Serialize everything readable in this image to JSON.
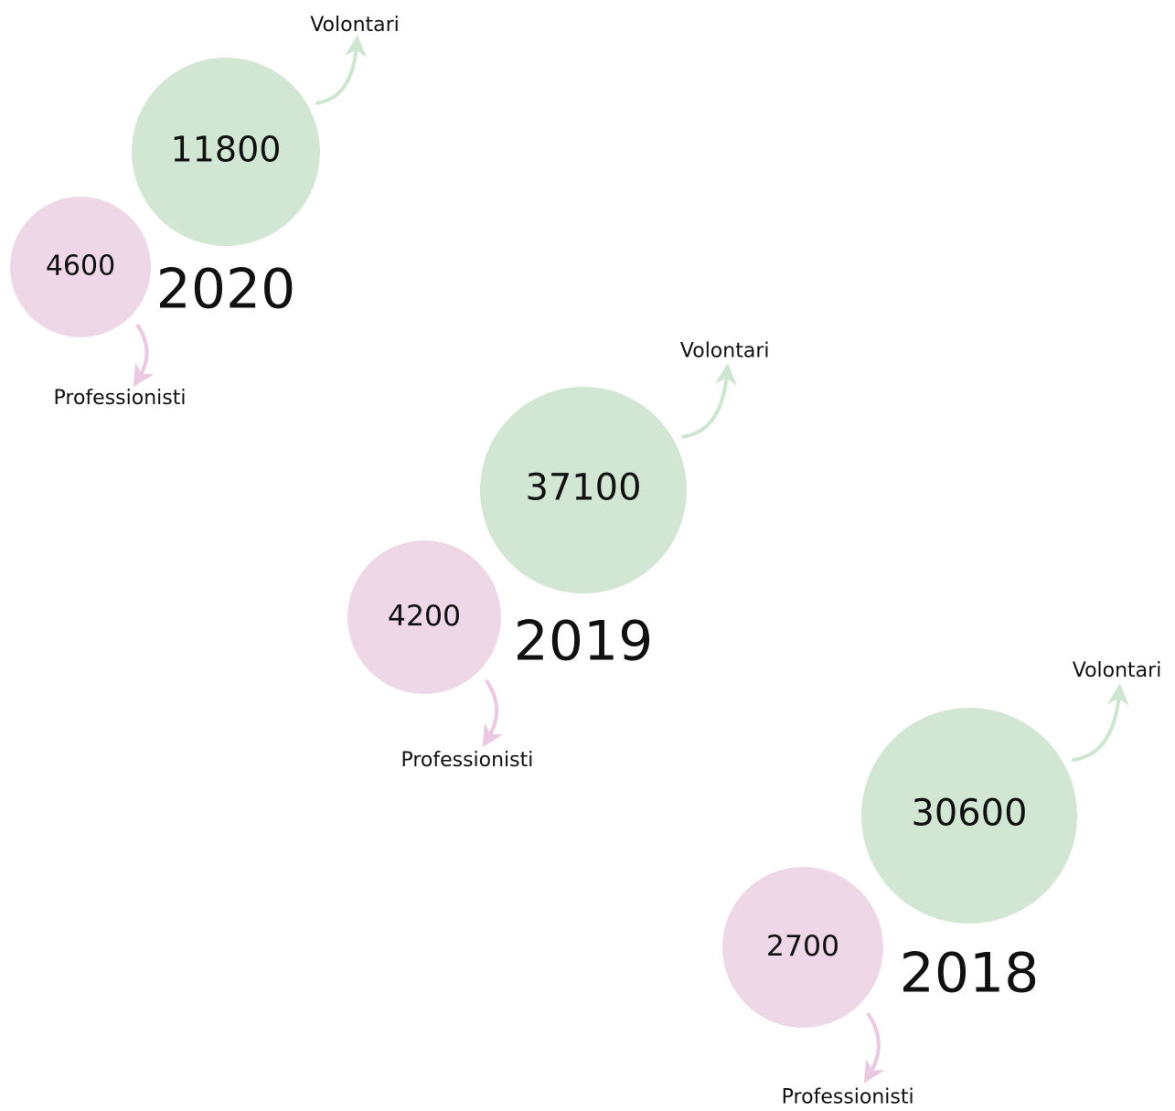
{
  "groups": [
    {
      "year": "2020",
      "volunteers": {
        "label": "Volontari",
        "value": 11800
      },
      "professionals": {
        "label": "Professionisti",
        "value": 4600
      }
    },
    {
      "year": "2019",
      "volunteers": {
        "label": "Volontari",
        "value": 37100
      },
      "professionals": {
        "label": "Professionisti",
        "value": 4200
      }
    },
    {
      "year": "2018",
      "volunteers": {
        "label": "Volontari",
        "value": 30600
      },
      "professionals": {
        "label": "Professionisti",
        "value": 2700
      }
    }
  ]
}
